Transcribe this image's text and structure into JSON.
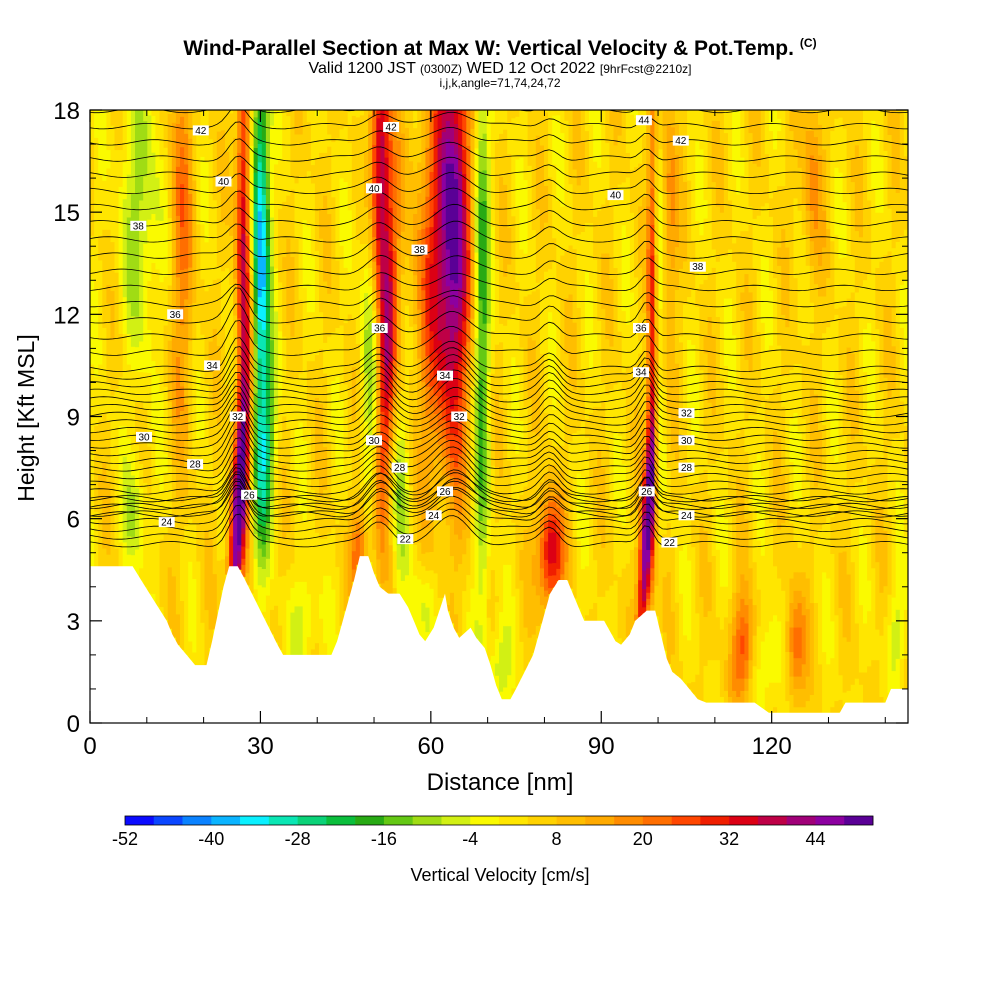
{
  "chart_data": {
    "type": "heatmap",
    "title": "Wind-Parallel Section at Max W: Vertical Velocity & Pot.Temp.",
    "title_mark": "(C)",
    "subtitle": {
      "valid": "Valid 1200 JST",
      "utc": "(0300Z)",
      "date": "WED 12 Oct 2022",
      "forecast": "[9hrFcst@2210z]"
    },
    "indices_line": "i,j,k,angle=71,74,24,72",
    "xlabel": "Distance [nm]",
    "ylabel": "Height [Kft MSL]",
    "xlim": [
      0,
      144
    ],
    "ylim": [
      0,
      18
    ],
    "x_ticks": [
      "0",
      "30",
      "60",
      "90",
      "120"
    ],
    "x_tick_values": [
      0,
      30,
      60,
      90,
      120
    ],
    "y_ticks": [
      "0",
      "3",
      "6",
      "9",
      "12",
      "15",
      "18"
    ],
    "y_tick_values": [
      0,
      3,
      6,
      9,
      12,
      15,
      18
    ],
    "colorbar": {
      "label": "Vertical Velocity [cm/s]",
      "tick_labels": [
        "-52",
        "-40",
        "-28",
        "-16",
        "-4",
        "8",
        "20",
        "32",
        "44"
      ],
      "min": -52,
      "max": 52,
      "colors": [
        "#0a0aff",
        "#0a46ff",
        "#0a82ff",
        "#0ab4ff",
        "#0af0ff",
        "#0ae6b4",
        "#0ad278",
        "#0abe3c",
        "#28aa14",
        "#64c814",
        "#a0dc14",
        "#d2f014",
        "#fafa00",
        "#ffe600",
        "#ffd200",
        "#ffbe00",
        "#ffaa00",
        "#ff8c00",
        "#ff6e00",
        "#ff4600",
        "#f01e00",
        "#dc0014",
        "#be0046",
        "#a00078",
        "#8c00a0",
        "#5a0096"
      ]
    },
    "updraft_cores": [
      {
        "x": 26,
        "w": 44
      },
      {
        "x": 51,
        "w": 40
      },
      {
        "x": 53,
        "w": 28
      },
      {
        "x": 64,
        "w": 44
      },
      {
        "x": 81,
        "w": 32
      },
      {
        "x": 98,
        "w": 44
      }
    ],
    "downdraft_cores": [
      {
        "x": 30,
        "w": -40
      },
      {
        "x": 49,
        "w": -16
      },
      {
        "x": 55,
        "w": -16
      },
      {
        "x": 69,
        "w": -20
      },
      {
        "x": 9,
        "w": -12
      },
      {
        "x": 100,
        "w": -8
      }
    ],
    "contour_labels": [
      {
        "text": "42",
        "x": 19.5,
        "y": 17.4
      },
      {
        "text": "42",
        "x": 53,
        "y": 17.5
      },
      {
        "text": "44",
        "x": 97.5,
        "y": 17.7
      },
      {
        "text": "42",
        "x": 104,
        "y": 17.1
      },
      {
        "text": "40",
        "x": 23.5,
        "y": 15.9
      },
      {
        "text": "40",
        "x": 50,
        "y": 15.7
      },
      {
        "text": "40",
        "x": 92.5,
        "y": 15.5
      },
      {
        "text": "38",
        "x": 8.5,
        "y": 14.6
      },
      {
        "text": "38",
        "x": 58,
        "y": 13.9
      },
      {
        "text": "38",
        "x": 107,
        "y": 13.4
      },
      {
        "text": "36",
        "x": 15,
        "y": 12.0
      },
      {
        "text": "36",
        "x": 51,
        "y": 11.6
      },
      {
        "text": "36",
        "x": 97,
        "y": 11.6
      },
      {
        "text": "34",
        "x": 21.5,
        "y": 10.5
      },
      {
        "text": "34",
        "x": 62.5,
        "y": 10.2
      },
      {
        "text": "34",
        "x": 97,
        "y": 10.3
      },
      {
        "text": "32",
        "x": 26,
        "y": 9.0
      },
      {
        "text": "32",
        "x": 65,
        "y": 9.0
      },
      {
        "text": "32",
        "x": 105,
        "y": 9.1
      },
      {
        "text": "30",
        "x": 9.5,
        "y": 8.4
      },
      {
        "text": "30",
        "x": 50,
        "y": 8.3
      },
      {
        "text": "30",
        "x": 105,
        "y": 8.3
      },
      {
        "text": "28",
        "x": 18.5,
        "y": 7.6
      },
      {
        "text": "28",
        "x": 54.5,
        "y": 7.5
      },
      {
        "text": "28",
        "x": 105,
        "y": 7.5
      },
      {
        "text": "26",
        "x": 28,
        "y": 6.7
      },
      {
        "text": "26",
        "x": 62.5,
        "y": 6.8
      },
      {
        "text": "26",
        "x": 98,
        "y": 6.8
      },
      {
        "text": "24",
        "x": 13.5,
        "y": 5.9
      },
      {
        "text": "24",
        "x": 60.5,
        "y": 6.1
      },
      {
        "text": "24",
        "x": 105,
        "y": 6.1
      },
      {
        "text": "22",
        "x": 55.5,
        "y": 5.4
      },
      {
        "text": "22",
        "x": 102,
        "y": 5.3
      }
    ],
    "terrain_top": [
      {
        "x": 0,
        "h": 4.6
      },
      {
        "x": 7.5,
        "h": 4.6
      },
      {
        "x": 9,
        "h": 4.2
      },
      {
        "x": 10.5,
        "h": 3.8
      },
      {
        "x": 12,
        "h": 3.4
      },
      {
        "x": 13.5,
        "h": 3.0
      },
      {
        "x": 14.5,
        "h": 2.6
      },
      {
        "x": 15.5,
        "h": 2.3
      },
      {
        "x": 17,
        "h": 2.0
      },
      {
        "x": 18.5,
        "h": 1.7
      },
      {
        "x": 20.5,
        "h": 1.7
      },
      {
        "x": 21.5,
        "h": 2.4
      },
      {
        "x": 22.5,
        "h": 3.2
      },
      {
        "x": 23.5,
        "h": 4.0
      },
      {
        "x": 24.5,
        "h": 4.6
      },
      {
        "x": 26,
        "h": 4.6
      },
      {
        "x": 27,
        "h": 4.3
      },
      {
        "x": 28.5,
        "h": 3.8
      },
      {
        "x": 30,
        "h": 3.3
      },
      {
        "x": 31.5,
        "h": 2.8
      },
      {
        "x": 33,
        "h": 2.3
      },
      {
        "x": 34,
        "h": 2.0
      },
      {
        "x": 42.5,
        "h": 2.0
      },
      {
        "x": 43.5,
        "h": 2.4
      },
      {
        "x": 44.5,
        "h": 3.0
      },
      {
        "x": 45.5,
        "h": 3.6
      },
      {
        "x": 46.5,
        "h": 4.2
      },
      {
        "x": 47.5,
        "h": 4.9
      },
      {
        "x": 49,
        "h": 4.9
      },
      {
        "x": 50,
        "h": 4.4
      },
      {
        "x": 51,
        "h": 4.0
      },
      {
        "x": 52.5,
        "h": 3.8
      },
      {
        "x": 54.5,
        "h": 3.8
      },
      {
        "x": 56,
        "h": 3.4
      },
      {
        "x": 57,
        "h": 3.0
      },
      {
        "x": 58,
        "h": 2.6
      },
      {
        "x": 59,
        "h": 2.4
      },
      {
        "x": 60.5,
        "h": 2.8
      },
      {
        "x": 61.5,
        "h": 3.3
      },
      {
        "x": 62.5,
        "h": 3.8
      },
      {
        "x": 63,
        "h": 3.3
      },
      {
        "x": 64,
        "h": 2.8
      },
      {
        "x": 65,
        "h": 2.5
      },
      {
        "x": 67,
        "h": 2.8
      },
      {
        "x": 68,
        "h": 2.5
      },
      {
        "x": 69.5,
        "h": 2.2
      },
      {
        "x": 70.5,
        "h": 1.7
      },
      {
        "x": 71.5,
        "h": 1.1
      },
      {
        "x": 72.5,
        "h": 0.7
      },
      {
        "x": 74,
        "h": 0.7
      },
      {
        "x": 75,
        "h": 1.0
      },
      {
        "x": 76.5,
        "h": 1.5
      },
      {
        "x": 78,
        "h": 2.0
      },
      {
        "x": 79,
        "h": 2.6
      },
      {
        "x": 80,
        "h": 3.2
      },
      {
        "x": 81,
        "h": 3.8
      },
      {
        "x": 82.5,
        "h": 4.2
      },
      {
        "x": 84,
        "h": 4.2
      },
      {
        "x": 85,
        "h": 3.8
      },
      {
        "x": 86,
        "h": 3.4
      },
      {
        "x": 87,
        "h": 3.0
      },
      {
        "x": 90.5,
        "h": 3.0
      },
      {
        "x": 91.5,
        "h": 2.7
      },
      {
        "x": 92.5,
        "h": 2.4
      },
      {
        "x": 93.5,
        "h": 2.3
      },
      {
        "x": 95,
        "h": 2.6
      },
      {
        "x": 96,
        "h": 3.0
      },
      {
        "x": 98,
        "h": 3.3
      },
      {
        "x": 99.5,
        "h": 3.3
      },
      {
        "x": 100.5,
        "h": 2.6
      },
      {
        "x": 101.5,
        "h": 1.9
      },
      {
        "x": 102.5,
        "h": 1.5
      },
      {
        "x": 104,
        "h": 1.3
      },
      {
        "x": 105,
        "h": 1.1
      },
      {
        "x": 106,
        "h": 0.9
      },
      {
        "x": 107,
        "h": 0.7
      },
      {
        "x": 108.5,
        "h": 0.6
      },
      {
        "x": 117,
        "h": 0.6
      },
      {
        "x": 119.5,
        "h": 0.3
      },
      {
        "x": 132,
        "h": 0.3
      },
      {
        "x": 133,
        "h": 0.6
      },
      {
        "x": 140,
        "h": 0.6
      },
      {
        "x": 141,
        "h": 1.0
      },
      {
        "x": 144,
        "h": 1.0
      }
    ]
  }
}
